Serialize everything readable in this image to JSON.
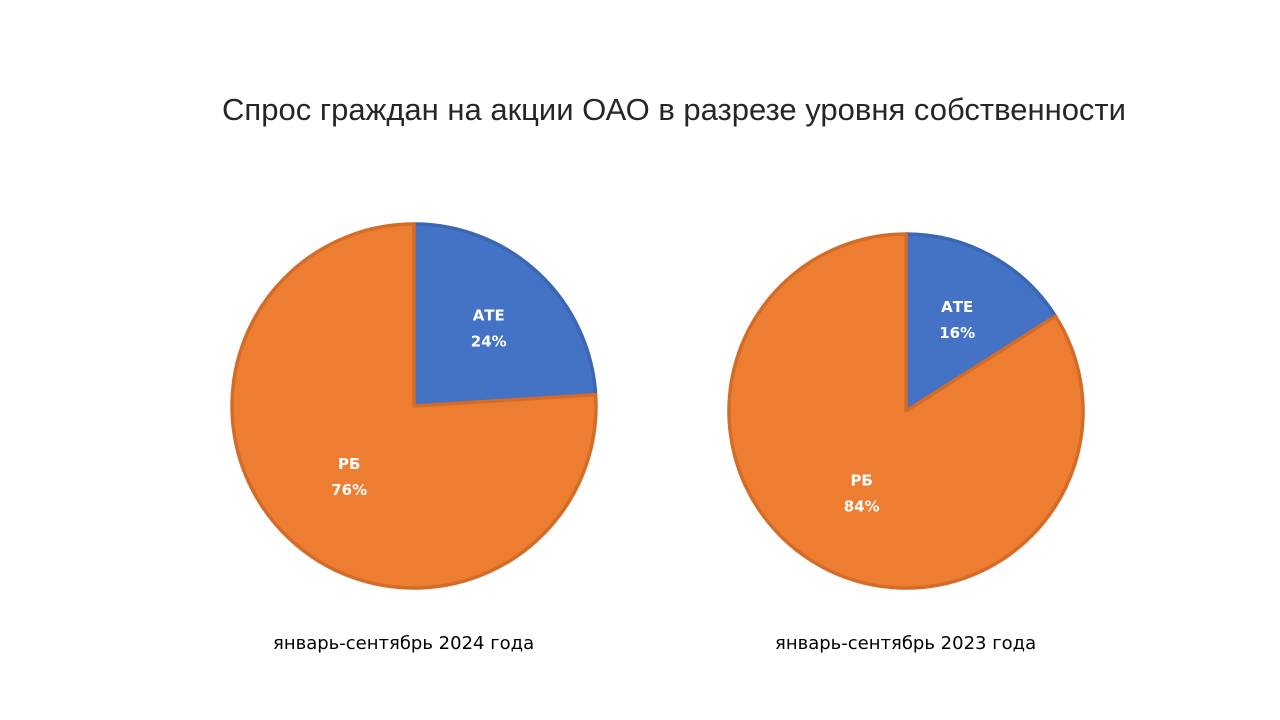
{
  "chart_data": [
    {
      "type": "pie",
      "title": "Спрос граждан на акции ОАО в разрезе уровня собственности",
      "subtitle": "январь-сентябрь 2024 года",
      "categories": [
        "АТЕ",
        "РБ"
      ],
      "values": [
        24,
        76
      ],
      "data_labels": [
        "24%",
        "76%"
      ],
      "colors": [
        "#4472C4",
        "#ED7D31"
      ]
    },
    {
      "type": "pie",
      "subtitle": "январь-сентябрь 2023 года",
      "categories": [
        "АТЕ",
        "РБ"
      ],
      "values": [
        16,
        84
      ],
      "data_labels": [
        "16%",
        "84%"
      ],
      "colors": [
        "#4472C4",
        "#ED7D31"
      ]
    }
  ]
}
